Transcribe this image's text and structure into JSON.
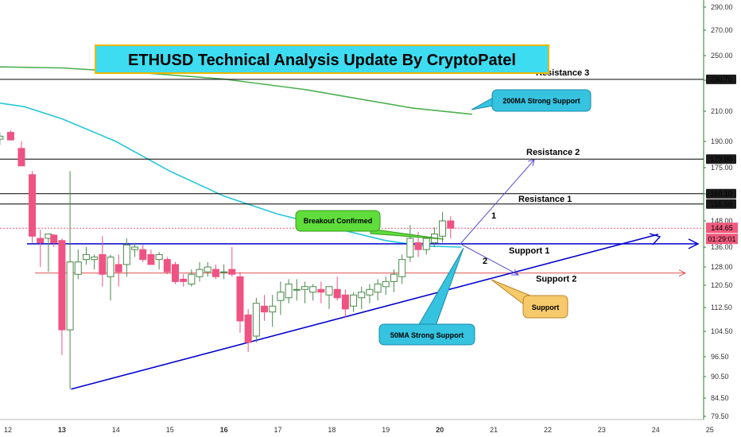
{
  "chart_data": {
    "type": "candlestick",
    "title": "ETHUSD Technical Analysis Update By CryptoPatel",
    "y_ticks": [
      "290.00",
      "270.00",
      "250.00",
      "230.00",
      "210.00",
      "190.00",
      "175.00",
      "160.00",
      "148.00",
      "136.00",
      "128.00",
      "120.50",
      "112.50",
      "104.50",
      "96.50",
      "90.50",
      "84.50",
      "79.50"
    ],
    "x_ticks": [
      "12",
      "13",
      "14",
      "15",
      "16",
      "17",
      "18",
      "19",
      "20",
      "21",
      "22",
      "23",
      "24",
      "25"
    ],
    "x_bold_ticks": [
      "13",
      "16",
      "20"
    ],
    "levels": [
      {
        "name": "Resistance 3",
        "value": 230.7,
        "badge": "230.70",
        "color": "#000000"
      },
      {
        "name": "Resistance 2",
        "value": 179.9,
        "badge": "179.90",
        "color": "#000000"
      },
      {
        "name": "",
        "value": 160.1,
        "badge": "160.10",
        "color": "#000000"
      },
      {
        "name": "Resistance 1",
        "value": 155.5,
        "badge": "155.50",
        "color": "#000000"
      },
      {
        "name": "Support 1",
        "value": 137.5,
        "badge": "",
        "color": "#0000cc"
      },
      {
        "name": "Support 2",
        "value": 125.5,
        "badge": "",
        "color": "#e05050"
      }
    ],
    "current_price": {
      "value": "144.65",
      "timer": "01:29:01",
      "color": "#f05a7e"
    },
    "ma_lines": [
      {
        "name": "200MA",
        "color": "#4caf50",
        "points": [
          [
            11.7,
            241
          ],
          [
            13.0,
            240
          ],
          [
            14.5,
            236
          ],
          [
            16.0,
            231
          ],
          [
            17.5,
            224
          ],
          [
            18.5,
            218
          ],
          [
            19.5,
            212
          ],
          [
            20.6,
            208
          ]
        ]
      },
      {
        "name": "50MA",
        "color": "#26c6da",
        "points": [
          [
            11.7,
            216
          ],
          [
            12.3,
            213
          ],
          [
            13.0,
            205
          ],
          [
            14.0,
            190
          ],
          [
            15.0,
            173
          ],
          [
            16.0,
            159
          ],
          [
            17.0,
            151
          ],
          [
            18.0,
            145
          ],
          [
            19.0,
            139
          ],
          [
            19.7,
            136.5
          ],
          [
            20.4,
            136
          ]
        ]
      }
    ],
    "candles": [
      {
        "x": 11.85,
        "o": 191.5,
        "h": 196,
        "l": 188,
        "c": 193.5
      },
      {
        "x": 12.05,
        "o": 196,
        "h": 197.5,
        "l": 190.5,
        "c": 191
      },
      {
        "x": 12.25,
        "o": 186,
        "h": 190,
        "l": 176,
        "c": 176
      },
      {
        "x": 12.45,
        "o": 171,
        "h": 173,
        "l": 138,
        "c": 141
      },
      {
        "x": 12.6,
        "o": 140,
        "h": 144,
        "l": 128,
        "c": 138
      },
      {
        "x": 12.75,
        "o": 140,
        "h": 141.5,
        "l": 126,
        "c": 142
      },
      {
        "x": 12.85,
        "o": 141.5,
        "h": 142,
        "l": 136,
        "c": 138
      },
      {
        "x": 13.0,
        "o": 139,
        "h": 140,
        "l": 97,
        "c": 105
      },
      {
        "x": 13.15,
        "o": 105,
        "h": 173,
        "l": 87,
        "c": 130
      },
      {
        "x": 13.3,
        "o": 125,
        "h": 135,
        "l": 123,
        "c": 130
      },
      {
        "x": 13.45,
        "o": 131,
        "h": 136,
        "l": 129,
        "c": 133
      },
      {
        "x": 13.6,
        "o": 131,
        "h": 133,
        "l": 127,
        "c": 132
      },
      {
        "x": 13.75,
        "o": 133,
        "h": 141,
        "l": 120,
        "c": 125
      },
      {
        "x": 13.9,
        "o": 124,
        "h": 133,
        "l": 115,
        "c": 132
      },
      {
        "x": 14.05,
        "o": 129,
        "h": 133,
        "l": 120,
        "c": 126
      },
      {
        "x": 14.2,
        "o": 129,
        "h": 140,
        "l": 124,
        "c": 137
      },
      {
        "x": 14.35,
        "o": 135,
        "h": 138,
        "l": 132,
        "c": 136
      },
      {
        "x": 14.5,
        "o": 135,
        "h": 137,
        "l": 130,
        "c": 131
      },
      {
        "x": 14.65,
        "o": 133,
        "h": 135,
        "l": 129,
        "c": 129
      },
      {
        "x": 14.8,
        "o": 131,
        "h": 134,
        "l": 127,
        "c": 133
      },
      {
        "x": 14.95,
        "o": 131,
        "h": 132,
        "l": 125,
        "c": 126
      },
      {
        "x": 15.1,
        "o": 129,
        "h": 130,
        "l": 121,
        "c": 122
      },
      {
        "x": 15.25,
        "o": 123,
        "h": 125,
        "l": 120,
        "c": 122
      },
      {
        "x": 15.4,
        "o": 121,
        "h": 127,
        "l": 120,
        "c": 125
      },
      {
        "x": 15.55,
        "o": 124,
        "h": 130,
        "l": 122,
        "c": 127
      },
      {
        "x": 15.7,
        "o": 126,
        "h": 130,
        "l": 124,
        "c": 128
      },
      {
        "x": 15.85,
        "o": 127,
        "h": 129,
        "l": 123,
        "c": 124
      },
      {
        "x": 16.0,
        "o": 126,
        "h": 129,
        "l": 123,
        "c": 126
      },
      {
        "x": 16.15,
        "o": 127,
        "h": 136,
        "l": 124,
        "c": 125
      },
      {
        "x": 16.3,
        "o": 124,
        "h": 126,
        "l": 104,
        "c": 108
      },
      {
        "x": 16.45,
        "o": 110,
        "h": 112,
        "l": 98,
        "c": 101
      },
      {
        "x": 16.6,
        "o": 103,
        "h": 116,
        "l": 101,
        "c": 114
      },
      {
        "x": 16.75,
        "o": 113,
        "h": 117,
        "l": 108,
        "c": 111
      },
      {
        "x": 16.9,
        "o": 111,
        "h": 117,
        "l": 106,
        "c": 113
      },
      {
        "x": 17.05,
        "o": 115,
        "h": 122,
        "l": 110,
        "c": 118
      },
      {
        "x": 17.2,
        "o": 116,
        "h": 123,
        "l": 114,
        "c": 121
      },
      {
        "x": 17.35,
        "o": 119,
        "h": 123,
        "l": 115,
        "c": 119
      },
      {
        "x": 17.5,
        "o": 119,
        "h": 122,
        "l": 114,
        "c": 120
      },
      {
        "x": 17.65,
        "o": 118,
        "h": 121,
        "l": 115,
        "c": 120
      },
      {
        "x": 17.8,
        "o": 119,
        "h": 122,
        "l": 114,
        "c": 118
      },
      {
        "x": 17.95,
        "o": 117,
        "h": 120,
        "l": 112,
        "c": 120
      },
      {
        "x": 18.1,
        "o": 119,
        "h": 124,
        "l": 115,
        "c": 116
      },
      {
        "x": 18.25,
        "o": 117,
        "h": 119,
        "l": 109,
        "c": 112
      },
      {
        "x": 18.4,
        "o": 113,
        "h": 118,
        "l": 111,
        "c": 117
      },
      {
        "x": 18.55,
        "o": 116,
        "h": 120,
        "l": 112,
        "c": 118
      },
      {
        "x": 18.7,
        "o": 117,
        "h": 121,
        "l": 114,
        "c": 119
      },
      {
        "x": 18.85,
        "o": 118,
        "h": 123,
        "l": 115,
        "c": 121
      },
      {
        "x": 19.0,
        "o": 120,
        "h": 124,
        "l": 117,
        "c": 122
      },
      {
        "x": 19.15,
        "o": 122,
        "h": 127,
        "l": 118,
        "c": 125
      },
      {
        "x": 19.3,
        "o": 124,
        "h": 133,
        "l": 121,
        "c": 131
      },
      {
        "x": 19.45,
        "o": 132,
        "h": 146,
        "l": 130,
        "c": 140
      },
      {
        "x": 19.6,
        "o": 138,
        "h": 143,
        "l": 132,
        "c": 135
      },
      {
        "x": 19.75,
        "o": 135,
        "h": 141,
        "l": 133,
        "c": 140
      },
      {
        "x": 19.9,
        "o": 138,
        "h": 145,
        "l": 136,
        "c": 142
      },
      {
        "x": 20.05,
        "o": 141,
        "h": 152,
        "l": 138,
        "c": 148
      },
      {
        "x": 20.2,
        "o": 148,
        "h": 150,
        "l": 140,
        "c": 144.65
      }
    ]
  },
  "annotations": {
    "breakout": "Breakout Confirmed",
    "ma200": "200MA Strong Support",
    "ma50": "50MA Strong Support",
    "support": "Support",
    "path_1": "1",
    "path_2": "2"
  }
}
